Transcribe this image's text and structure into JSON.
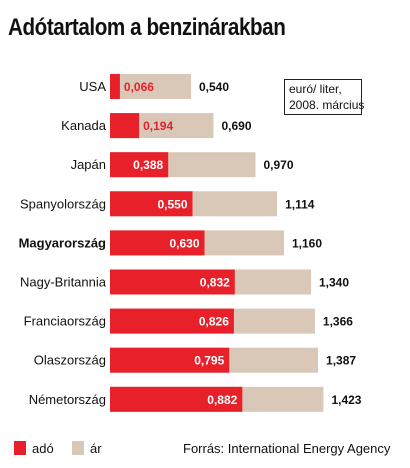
{
  "title": "Adótartalom a benzinárakban",
  "unit_note": [
    "euró/ liter,",
    "2008. március"
  ],
  "source": "Forrás: International Energy Agency",
  "colors": {
    "tax": "#e8202a",
    "price": "#d9c7b8",
    "tax_label_light": "#ffffff",
    "tax_label_dark": "#e8202a"
  },
  "chart_data": {
    "type": "bar",
    "orientation": "horizontal",
    "categories": [
      "USA",
      "Kanada",
      "Japán",
      "Spanyolország",
      "Magyarország",
      "Nagy-Britannia",
      "Franciaország",
      "Olaszország",
      "Németország"
    ],
    "highlighted_category": "Magyarország",
    "series": [
      {
        "name": "adó",
        "values": [
          0.066,
          0.194,
          0.388,
          0.55,
          0.63,
          0.832,
          0.826,
          0.795,
          0.882
        ],
        "labels": [
          "0,066",
          "0,194",
          "0,388",
          "0,550",
          "0,630",
          "0,832",
          "0,826",
          "0,795",
          "0,882"
        ]
      },
      {
        "name": "ár",
        "values": [
          0.54,
          0.69,
          0.97,
          1.114,
          1.16,
          1.34,
          1.366,
          1.387,
          1.423
        ],
        "labels": [
          "0,540",
          "0,690",
          "0,970",
          "1,114",
          "1,160",
          "1,340",
          "1,366",
          "1,387",
          "1,423"
        ]
      }
    ],
    "legend": [
      {
        "name": "adó",
        "color": "#e8202a"
      },
      {
        "name": "ár",
        "color": "#d9c7b8"
      }
    ],
    "legend_position": "bottom-left",
    "grid": false
  }
}
